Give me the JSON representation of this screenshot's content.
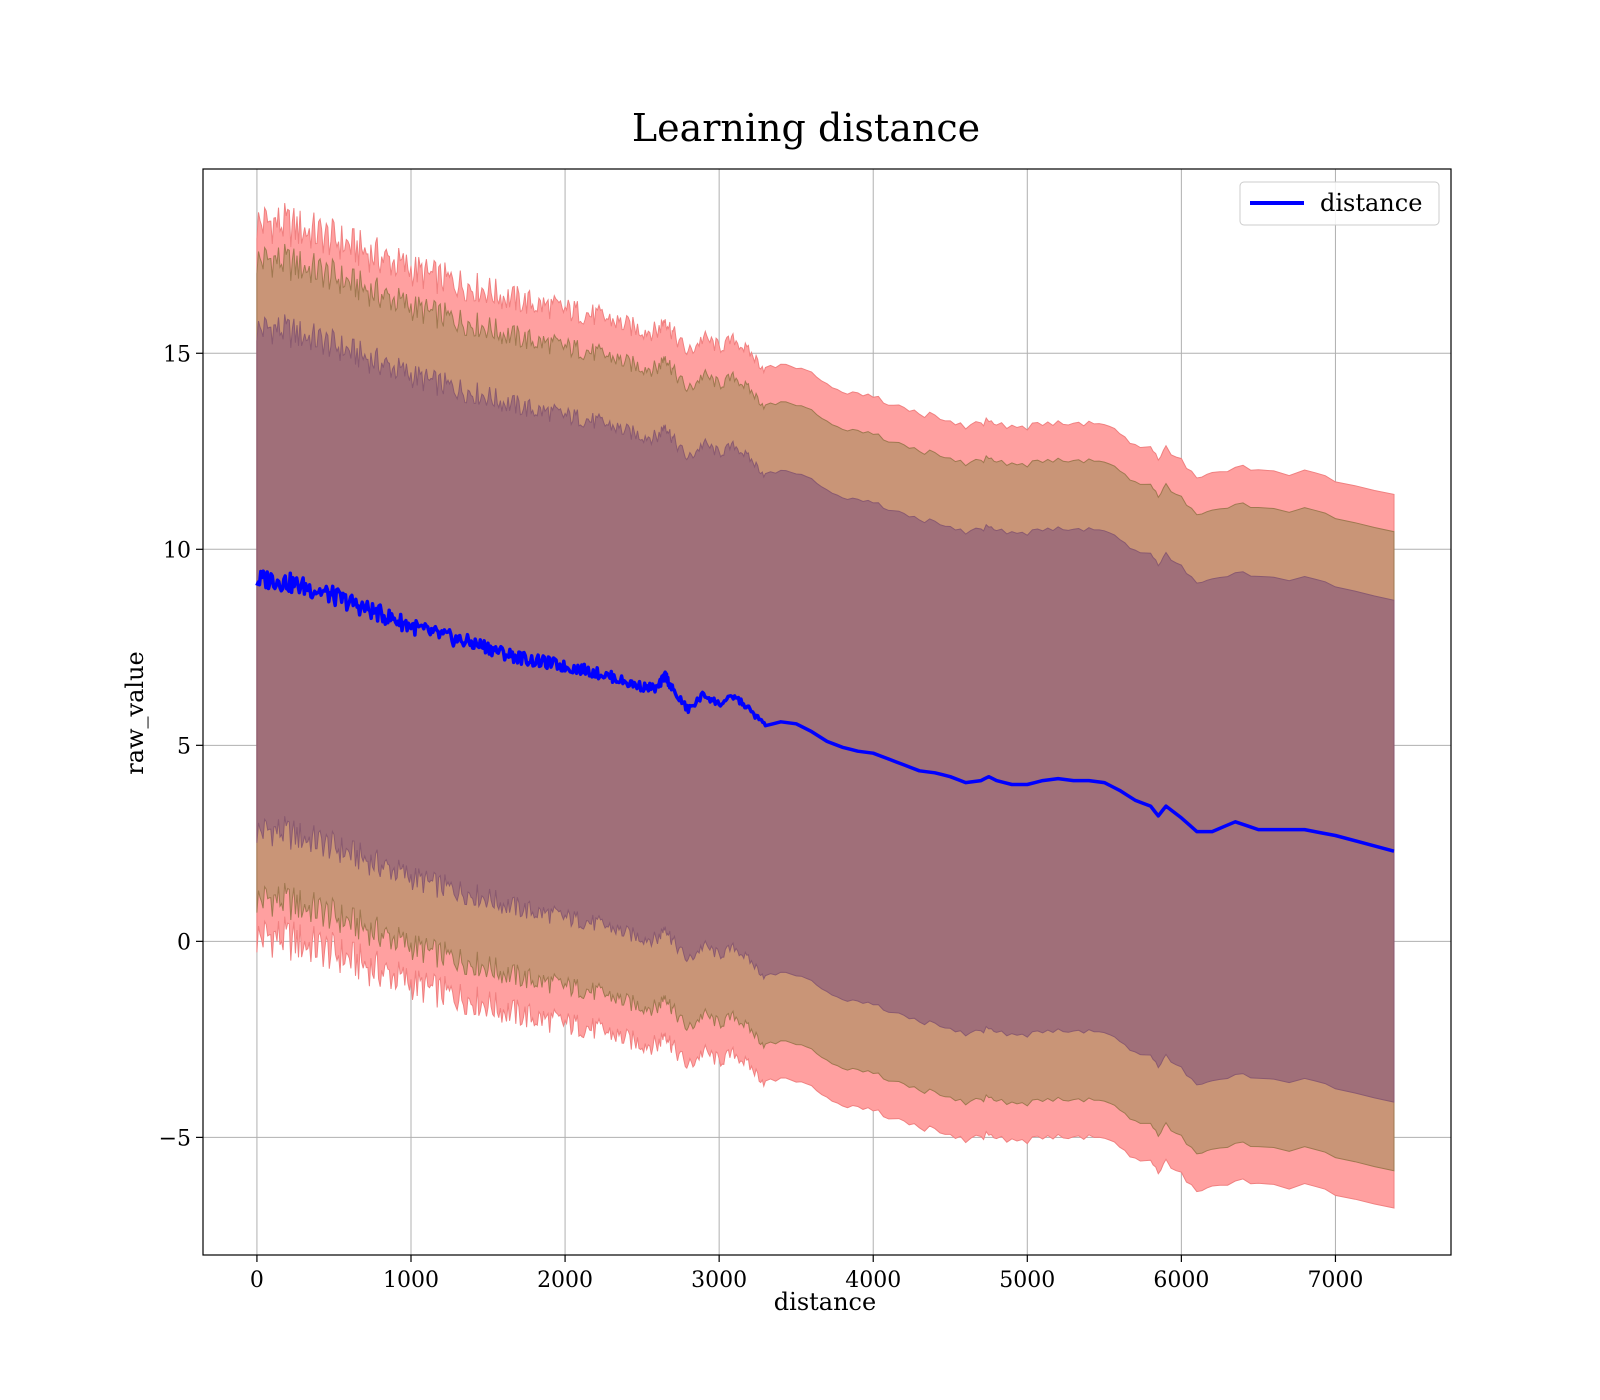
{
  "chart_data": {
    "type": "area",
    "title": "Learning distance",
    "xlabel": "distance",
    "ylabel": "raw_value",
    "xlim": [
      -350,
      7750
    ],
    "ylim": [
      -8.0,
      19.7
    ],
    "xticks": [
      0,
      1000,
      2000,
      3000,
      4000,
      5000,
      6000,
      7000
    ],
    "xtick_labels": [
      "0",
      "1000",
      "2000",
      "3000",
      "4000",
      "5000",
      "6000",
      "7000"
    ],
    "yticks": [
      -5,
      0,
      5,
      10,
      15
    ],
    "ytick_labels": [
      "−5",
      "0",
      "5",
      "10",
      "15"
    ],
    "grid": true,
    "legend_position": "top-right",
    "legend": [
      "distance"
    ],
    "colors": {
      "line": "#0000ff",
      "band_outer": "#ffa0a0",
      "band_middle": "#c99577",
      "band_inner": "#a06f79",
      "grid": "#b0b0b0"
    },
    "series": [
      {
        "name": "distance",
        "x": [
          0,
          100,
          200,
          300,
          400,
          500,
          600,
          700,
          800,
          900,
          1000,
          1100,
          1200,
          1300,
          1400,
          1500,
          1600,
          1700,
          1800,
          1900,
          2000,
          2100,
          2200,
          2300,
          2400,
          2500,
          2600,
          2650,
          2700,
          2800,
          2900,
          3000,
          3100,
          3200,
          3300,
          3400,
          3500,
          3600,
          3700,
          3800,
          3900,
          4000,
          4100,
          4200,
          4300,
          4400,
          4500,
          4600,
          4700,
          4750,
          4800,
          4900,
          5000,
          5100,
          5200,
          5300,
          5400,
          5500,
          5600,
          5700,
          5800,
          5850,
          5900,
          6000,
          6100,
          6200,
          6350,
          6500,
          6800,
          7000,
          7380
        ],
        "values": [
          9.2,
          9.25,
          9.15,
          9.05,
          8.95,
          8.8,
          8.65,
          8.5,
          8.35,
          8.2,
          8.05,
          7.9,
          7.8,
          7.7,
          7.6,
          7.5,
          7.35,
          7.25,
          7.15,
          7.1,
          7.0,
          6.95,
          6.85,
          6.75,
          6.6,
          6.5,
          6.45,
          6.8,
          6.4,
          5.9,
          6.3,
          6.05,
          6.25,
          5.9,
          5.5,
          5.6,
          5.55,
          5.35,
          5.1,
          4.95,
          4.85,
          4.8,
          4.65,
          4.5,
          4.35,
          4.3,
          4.2,
          4.05,
          4.1,
          4.2,
          4.1,
          4.0,
          4.0,
          4.1,
          4.15,
          4.1,
          4.1,
          4.05,
          3.85,
          3.6,
          3.45,
          3.2,
          3.45,
          3.15,
          2.8,
          2.8,
          3.05,
          2.85,
          2.85,
          2.7,
          2.3
        ],
        "inner_band_halfwidth": [
          6.4,
          6.4,
          6.4,
          6.4,
          6.4,
          6.4,
          6.4,
          6.4,
          6.4,
          6.4,
          6.4,
          6.4,
          6.4,
          6.4,
          6.4,
          6.4,
          6.4,
          6.4,
          6.4,
          6.4,
          6.4,
          6.4,
          6.4,
          6.4,
          6.4,
          6.4,
          6.4,
          6.4,
          6.4,
          6.4,
          6.4,
          6.4,
          6.4,
          6.4,
          6.4,
          6.4,
          6.4,
          6.4,
          6.4,
          6.4,
          6.4,
          6.4,
          6.4,
          6.4,
          6.4,
          6.4,
          6.4,
          6.4,
          6.4,
          6.4,
          6.4,
          6.4,
          6.4,
          6.4,
          6.4,
          6.4,
          6.4,
          6.4,
          6.4,
          6.4,
          6.4,
          6.4,
          6.4,
          6.4,
          6.4,
          6.4,
          6.4,
          6.4,
          6.4,
          6.4,
          6.4
        ],
        "middle_band_halfwidth": [
          8.15,
          8.15,
          8.15,
          8.15,
          8.15,
          8.15,
          8.15,
          8.15,
          8.15,
          8.15,
          8.15,
          8.15,
          8.15,
          8.15,
          8.15,
          8.15,
          8.15,
          8.15,
          8.15,
          8.15,
          8.15,
          8.15,
          8.15,
          8.15,
          8.15,
          8.15,
          8.15,
          8.15,
          8.15,
          8.15,
          8.15,
          8.15,
          8.15,
          8.15,
          8.15,
          8.15,
          8.15,
          8.15,
          8.15,
          8.15,
          8.15,
          8.15,
          8.15,
          8.15,
          8.15,
          8.15,
          8.15,
          8.15,
          8.15,
          8.15,
          8.15,
          8.15,
          8.15,
          8.15,
          8.15,
          8.15,
          8.15,
          8.15,
          8.15,
          8.15,
          8.15,
          8.15,
          8.15,
          8.15,
          8.15,
          8.15,
          8.15,
          8.15,
          8.15,
          8.15,
          8.15
        ],
        "outer_band_halfwidth": [
          9.1,
          9.1,
          9.1,
          9.1,
          9.1,
          9.1,
          9.1,
          9.1,
          9.1,
          9.1,
          9.1,
          9.1,
          9.1,
          9.1,
          9.1,
          9.1,
          9.1,
          9.1,
          9.1,
          9.1,
          9.1,
          9.1,
          9.1,
          9.1,
          9.1,
          9.1,
          9.1,
          9.1,
          9.1,
          9.1,
          9.1,
          9.1,
          9.1,
          9.1,
          9.1,
          9.1,
          9.1,
          9.1,
          9.1,
          9.1,
          9.1,
          9.1,
          9.1,
          9.1,
          9.1,
          9.1,
          9.1,
          9.1,
          9.1,
          9.1,
          9.1,
          9.1,
          9.1,
          9.1,
          9.1,
          9.1,
          9.1,
          9.1,
          9.1,
          9.1,
          9.1,
          9.1,
          9.1,
          9.1,
          9.1,
          9.1,
          9.1,
          9.1,
          9.1,
          9.1,
          9.1
        ]
      }
    ]
  }
}
